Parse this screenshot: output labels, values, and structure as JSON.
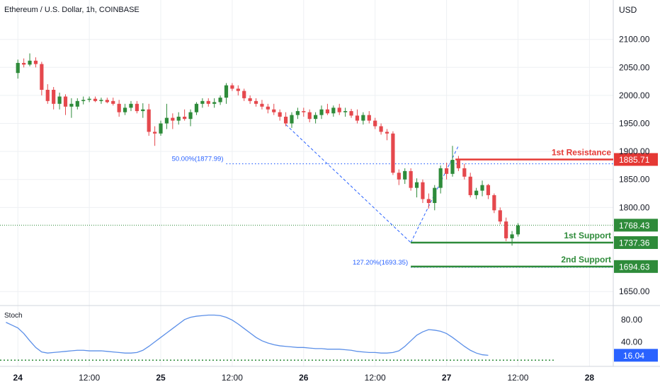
{
  "header": {
    "title": "Ethereum / U.S. Dollar, 1h, COINBASE",
    "currency": "USD"
  },
  "colors": {
    "bull": "#2e8b3a",
    "bear": "#e5484d",
    "resistance": "#e53935",
    "support": "#2e8b3a",
    "fib": "#2962ff",
    "current": "#2e8b3a",
    "stoch": "#5b8fe8",
    "grid": "#eef0f3",
    "axis_text": "#131722"
  },
  "chart_data": {
    "type": "candlestick",
    "symbol": "Ethereum / U.S. Dollar",
    "interval": "1h",
    "exchange": "COINBASE",
    "y_axis": {
      "range": [
        1625,
        2140
      ],
      "ticks": [
        2100,
        2050,
        2000,
        1950,
        1900,
        1850,
        1800,
        1650
      ],
      "tick_labels": [
        "2100.00",
        "2050.00",
        "2000.00",
        "1950.00",
        "1900.00",
        "1850.00",
        "1800.00",
        "1650.00"
      ]
    },
    "x_axis": {
      "range_hours": [
        -3,
        100
      ],
      "ticks": [
        {
          "hour": 0,
          "label": "24",
          "bold": true
        },
        {
          "hour": 12,
          "label": "12:00",
          "bold": false
        },
        {
          "hour": 24,
          "label": "25",
          "bold": true
        },
        {
          "hour": 36,
          "label": "12:00",
          "bold": false
        },
        {
          "hour": 48,
          "label": "26",
          "bold": true
        },
        {
          "hour": 60,
          "label": "12:00",
          "bold": false
        },
        {
          "hour": 72,
          "label": "27",
          "bold": true
        },
        {
          "hour": 84,
          "label": "12:00",
          "bold": false
        },
        {
          "hour": 96,
          "label": "28",
          "bold": true
        }
      ]
    },
    "candles": [
      [
        2040,
        2064,
        2030,
        2058
      ],
      [
        2058,
        2066,
        2050,
        2055
      ],
      [
        2055,
        2075,
        2052,
        2062
      ],
      [
        2062,
        2068,
        2050,
        2056
      ],
      [
        2056,
        2060,
        2000,
        2010
      ],
      [
        2010,
        2020,
        1985,
        1990
      ],
      [
        2010,
        2015,
        1975,
        1985
      ],
      [
        1985,
        2005,
        1975,
        1998
      ],
      [
        1998,
        2002,
        1965,
        1980
      ],
      [
        1980,
        1995,
        1960,
        1985
      ],
      [
        1980,
        1995,
        1975,
        1990
      ],
      [
        1990,
        1998,
        1984,
        1992
      ],
      [
        1992,
        1998,
        1988,
        1994
      ],
      [
        1994,
        1998,
        1988,
        1990
      ],
      [
        1990,
        1996,
        1985,
        1992
      ],
      [
        1992,
        1996,
        1986,
        1988
      ],
      [
        1990,
        1996,
        1982,
        1985
      ],
      [
        1985,
        1992,
        1962,
        1970
      ],
      [
        1970,
        1985,
        1965,
        1978
      ],
      [
        1978,
        1990,
        1972,
        1985
      ],
      [
        1985,
        1990,
        1968,
        1972
      ],
      [
        1972,
        1986,
        1960,
        1975
      ],
      [
        1975,
        1985,
        1928,
        1935
      ],
      [
        1935,
        1945,
        1910,
        1932
      ],
      [
        1932,
        1955,
        1928,
        1950
      ],
      [
        1950,
        1985,
        1940,
        1960
      ],
      [
        1960,
        1968,
        1940,
        1955
      ],
      [
        1955,
        1970,
        1948,
        1962
      ],
      [
        1962,
        1975,
        1955,
        1958
      ],
      [
        1958,
        1975,
        1945,
        1970
      ],
      [
        1970,
        1988,
        1965,
        1985
      ],
      [
        1985,
        1995,
        1978,
        1990
      ],
      [
        1990,
        1995,
        1980,
        1985
      ],
      [
        1985,
        1995,
        1978,
        1988
      ],
      [
        1988,
        2000,
        1983,
        1996
      ],
      [
        1996,
        2022,
        1985,
        2018
      ],
      [
        2018,
        2022,
        2008,
        2012
      ],
      [
        2012,
        2018,
        2000,
        2008
      ],
      [
        2008,
        2012,
        1990,
        1995
      ],
      [
        1995,
        2000,
        1985,
        1990
      ],
      [
        1990,
        1995,
        1980,
        1985
      ],
      [
        1985,
        1992,
        1975,
        1980
      ],
      [
        1980,
        1985,
        1968,
        1975
      ],
      [
        1975,
        1985,
        1965,
        1970
      ],
      [
        1970,
        1975,
        1955,
        1962
      ],
      [
        1962,
        1970,
        1945,
        1950
      ],
      [
        1950,
        1970,
        1942,
        1965
      ],
      [
        1965,
        1978,
        1958,
        1972
      ],
      [
        1972,
        1978,
        1962,
        1970
      ],
      [
        1970,
        1975,
        1952,
        1958
      ],
      [
        1958,
        1970,
        1950,
        1965
      ],
      [
        1965,
        1982,
        1958,
        1975
      ],
      [
        1975,
        1985,
        1965,
        1968
      ],
      [
        1968,
        1982,
        1962,
        1978
      ],
      [
        1978,
        1985,
        1965,
        1970
      ],
      [
        1970,
        1978,
        1962,
        1972
      ],
      [
        1972,
        1976,
        1960,
        1964
      ],
      [
        1964,
        1975,
        1950,
        1955
      ],
      [
        1955,
        1970,
        1948,
        1965
      ],
      [
        1965,
        1972,
        1950,
        1955
      ],
      [
        1955,
        1960,
        1940,
        1945
      ],
      [
        1945,
        1950,
        1930,
        1935
      ],
      [
        1935,
        1940,
        1920,
        1932
      ],
      [
        1932,
        1936,
        1858,
        1862
      ],
      [
        1862,
        1868,
        1840,
        1850
      ],
      [
        1850,
        1870,
        1842,
        1865
      ],
      [
        1865,
        1870,
        1830,
        1835
      ],
      [
        1835,
        1852,
        1818,
        1845
      ],
      [
        1845,
        1850,
        1808,
        1815
      ],
      [
        1815,
        1825,
        1798,
        1808
      ],
      [
        1808,
        1840,
        1795,
        1835
      ],
      [
        1835,
        1875,
        1825,
        1870
      ],
      [
        1870,
        1880,
        1850,
        1860
      ],
      [
        1860,
        1910,
        1855,
        1885
      ],
      [
        1885,
        1892,
        1865,
        1870
      ],
      [
        1870,
        1878,
        1850,
        1855
      ],
      [
        1855,
        1862,
        1818,
        1822
      ],
      [
        1822,
        1835,
        1815,
        1830
      ],
      [
        1830,
        1848,
        1820,
        1840
      ],
      [
        1840,
        1842,
        1815,
        1822
      ],
      [
        1822,
        1825,
        1790,
        1795
      ],
      [
        1795,
        1800,
        1770,
        1775
      ],
      [
        1775,
        1782,
        1740,
        1745
      ],
      [
        1745,
        1758,
        1732,
        1752
      ],
      [
        1752,
        1772,
        1748,
        1768
      ]
    ],
    "levels": [
      {
        "name": "1st Resistance",
        "value": 1885.71,
        "label": "1885.71",
        "kind": "resistance"
      },
      {
        "name": "1st Support",
        "value": 1737.36,
        "label": "1737.36",
        "kind": "support"
      },
      {
        "name": "2nd Support",
        "value": 1694.63,
        "label": "1694.63",
        "kind": "support"
      }
    ],
    "fibonacci": [
      {
        "label": "50.00%(1877.99)",
        "value": 1877.99
      },
      {
        "label": "127.20%(1693.35)",
        "value": 1693.35
      }
    ],
    "current_price": {
      "value": 1768.43,
      "label": "1768.43"
    },
    "stochastic": {
      "name": "Stoch",
      "range": [
        0,
        100
      ],
      "ticks": [
        80,
        40
      ],
      "tick_labels": [
        "80.00",
        "40.00"
      ],
      "oversold": 20,
      "current": {
        "value": 16.04,
        "label": "16.04"
      },
      "values": [
        75,
        70,
        65,
        55,
        42,
        30,
        22,
        20,
        21,
        22,
        23,
        24,
        25,
        25,
        24,
        24,
        24,
        23,
        22,
        21,
        20,
        20,
        21,
        25,
        32,
        40,
        48,
        56,
        64,
        72,
        80,
        84,
        86,
        87,
        88,
        88,
        87,
        84,
        79,
        72,
        64,
        56,
        48,
        42,
        38,
        35,
        33,
        32,
        31,
        30,
        30,
        29,
        28,
        28,
        27,
        27,
        27,
        26,
        25,
        23,
        22,
        21,
        21,
        20,
        20,
        21,
        24,
        32,
        42,
        52,
        58,
        62,
        61,
        59,
        55,
        48,
        40,
        32,
        25,
        20,
        17,
        16
      ]
    }
  }
}
